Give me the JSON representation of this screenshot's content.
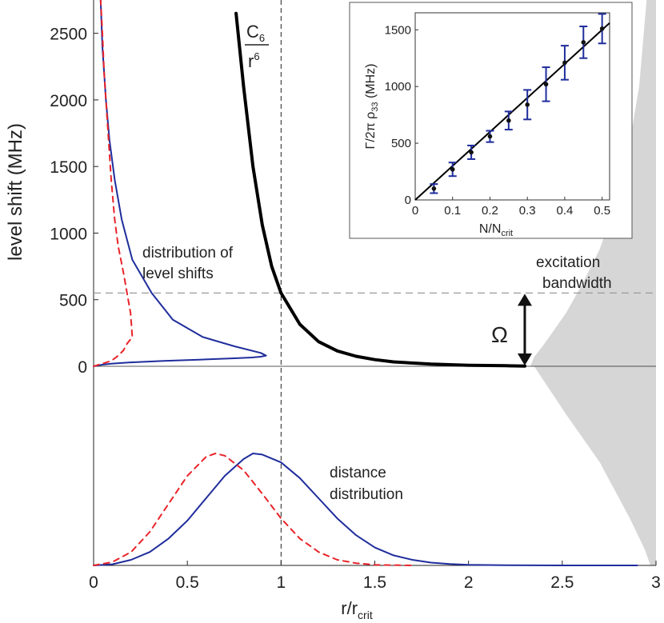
{
  "chart_data": [
    {
      "type": "line",
      "title": "",
      "xlabel": {
        "main": "r/r",
        "sub": "crit"
      },
      "ylabel": "level shift (MHz)",
      "xlim": [
        0,
        3
      ],
      "ylim": [
        0,
        2750
      ],
      "x_ticks": [
        "0",
        "0.5",
        "1",
        "1.5",
        "2",
        "2.5",
        "3"
      ],
      "y_ticks": [
        "0",
        "500",
        "1000",
        "1500",
        "2000",
        "2500"
      ],
      "grid": false,
      "annotations": {
        "c6_num": "C",
        "c6_num_sub": "6",
        "c6_den": "r",
        "c6_den_sup": "6",
        "level_shift_label": [
          "distribution of",
          "level shifts"
        ],
        "bandwidth_label": [
          "excitation",
          "bandwidth"
        ],
        "omega": "Ω",
        "distance_label": [
          "distance",
          "distribution"
        ]
      },
      "reference_lines": {
        "r_crit": 1.0,
        "excitation_bandwidth_mhz": 550,
        "omega_arrow_at_r": 2.3
      },
      "series": [
        {
          "role": "C6/r^6 potential",
          "color": "#000000",
          "style": "solid-thick",
          "x": [
            0.76,
            0.8,
            0.85,
            0.9,
            0.95,
            1.0,
            1.1,
            1.2,
            1.3,
            1.4,
            1.5,
            1.6,
            1.8,
            2.0,
            2.2,
            2.3
          ],
          "y": [
            2650,
            2100,
            1500,
            1060,
            750,
            550,
            315,
            185,
            115,
            75,
            50,
            33,
            16,
            8,
            4,
            2
          ]
        },
        {
          "role": "distance distribution (solid)",
          "color": "#1f2d9c",
          "style": "solid",
          "x": [
            0,
            0.1,
            0.2,
            0.3,
            0.4,
            0.5,
            0.6,
            0.7,
            0.8,
            0.85,
            0.9,
            1.0,
            1.1,
            1.2,
            1.3,
            1.4,
            1.5,
            1.6,
            1.7,
            1.8,
            1.9,
            2.0,
            2.2,
            2.5,
            2.9
          ],
          "y": [
            0,
            0.01,
            0.05,
            0.12,
            0.24,
            0.4,
            0.6,
            0.8,
            0.95,
            1.0,
            0.99,
            0.92,
            0.78,
            0.6,
            0.42,
            0.27,
            0.16,
            0.09,
            0.05,
            0.025,
            0.012,
            0.006,
            0.002,
            0.0,
            0.0
          ]
        },
        {
          "role": "distance distribution (dashed)",
          "color": "#e8242a",
          "style": "dashed",
          "x": [
            0,
            0.1,
            0.2,
            0.3,
            0.4,
            0.5,
            0.6,
            0.65,
            0.7,
            0.8,
            0.9,
            1.0,
            1.1,
            1.2,
            1.3,
            1.4,
            1.5,
            1.7
          ],
          "y": [
            0,
            0.03,
            0.12,
            0.3,
            0.55,
            0.8,
            0.97,
            1.0,
            0.98,
            0.85,
            0.64,
            0.42,
            0.24,
            0.12,
            0.05,
            0.02,
            0.005,
            0.0
          ]
        },
        {
          "role": "level shift distribution (solid)",
          "color": "#1f2d9c",
          "style": "solid",
          "weight_r": [
            0.0,
            0.02,
            0.05,
            0.1,
            0.2,
            0.4,
            0.6,
            0.8,
            0.9,
            0.95,
            0.98,
            0.95,
            0.8,
            0.62,
            0.45,
            0.33,
            0.22,
            0.16,
            0.12,
            0.09,
            0.07,
            0.05,
            0.04
          ],
          "y": [
            0,
            5,
            12,
            20,
            28,
            40,
            50,
            60,
            66,
            72,
            80,
            100,
            150,
            220,
            350,
            550,
            800,
            1100,
            1400,
            1700,
            2000,
            2400,
            2750
          ]
        },
        {
          "role": "level shift distribution (dashed)",
          "color": "#e8242a",
          "style": "dashed",
          "weight_r": [
            0.0,
            0.1,
            0.14,
            0.17,
            0.19,
            0.22,
            0.21,
            0.19,
            0.17,
            0.14,
            0.12,
            0.1,
            0.08,
            0.06,
            0.05,
            0.04
          ],
          "y": [
            0,
            40,
            80,
            120,
            170,
            220,
            400,
            550,
            700,
            900,
            1100,
            1400,
            1800,
            2200,
            2500,
            2750
          ]
        },
        {
          "role": "excitation bandwidth (shaded)",
          "color": "#d6d6d6",
          "style": "fill",
          "r_edge": [
            2.95,
            2.91,
            2.85,
            2.78,
            2.7,
            2.6,
            2.52,
            2.45,
            2.4,
            2.35,
            2.33
          ],
          "y": [
            2750,
            2100,
            1600,
            1200,
            880,
            600,
            400,
            260,
            160,
            70,
            0
          ]
        }
      ]
    },
    {
      "type": "scatter",
      "title": "",
      "xlabel": {
        "main": "N/N",
        "sub": "crit"
      },
      "ylabel": {
        "a": "Γ/2π ρ",
        "sub": "33",
        "b": " (MHz)"
      },
      "xlim": [
        0,
        0.52
      ],
      "ylim": [
        0,
        1650
      ],
      "x_ticks": [
        "0",
        "0.1",
        "0.2",
        "0.3",
        "0.4",
        "0.5"
      ],
      "y_ticks": [
        "0",
        "500",
        "1000",
        "1500"
      ],
      "grid": false,
      "series": [
        {
          "role": "measured",
          "color": "#1f2d9c",
          "x": [
            0.05,
            0.1,
            0.15,
            0.2,
            0.25,
            0.3,
            0.35,
            0.4,
            0.45,
            0.5
          ],
          "y": [
            100,
            270,
            420,
            560,
            700,
            840,
            1020,
            1210,
            1390,
            1510
          ],
          "err": [
            40,
            60,
            60,
            50,
            80,
            130,
            150,
            150,
            140,
            130
          ]
        },
        {
          "role": "linear fit",
          "color": "#000000",
          "x": [
            0,
            0.52
          ],
          "y": [
            0,
            1560
          ]
        }
      ]
    }
  ]
}
